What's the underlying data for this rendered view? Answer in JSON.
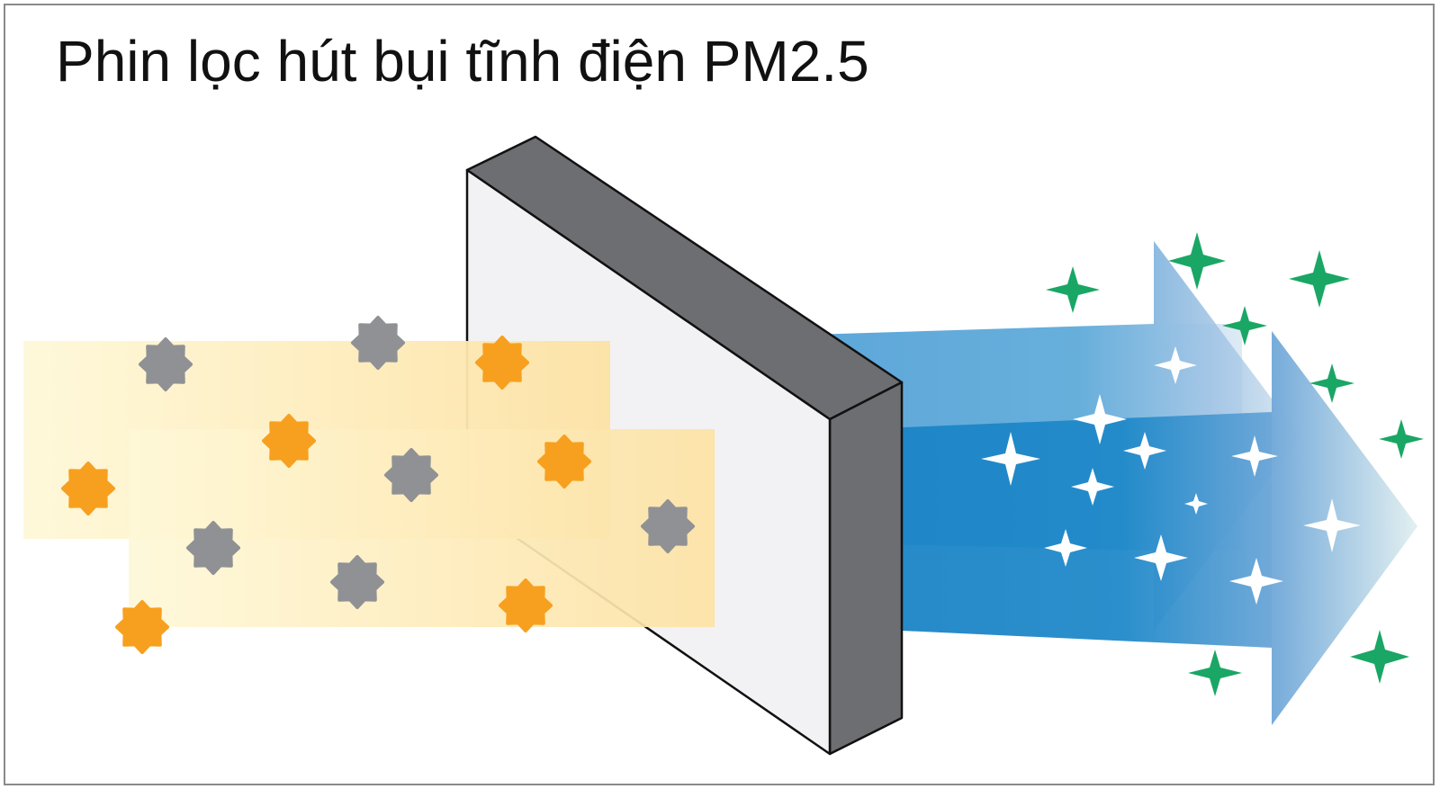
{
  "title": "Phin lọc hút bụi tĩnh điện PM2.5",
  "colors": {
    "dust_orange": "#f7a01f",
    "dust_gray": "#8f9194",
    "dirty_air_light": "#fdf5cf",
    "dirty_air_dark": "#fde2a4",
    "filter_face": "#f2f2f4",
    "filter_side": "#6d6e71",
    "clean_air_blue": "#1e87c8",
    "clean_air_light": "#b9d3ea",
    "sparkle_green": "#1aa665",
    "sparkle_white": "#ffffff"
  },
  "icons": {
    "dust_particle": "dust-particle-icon",
    "sparkle": "sparkle-icon"
  }
}
